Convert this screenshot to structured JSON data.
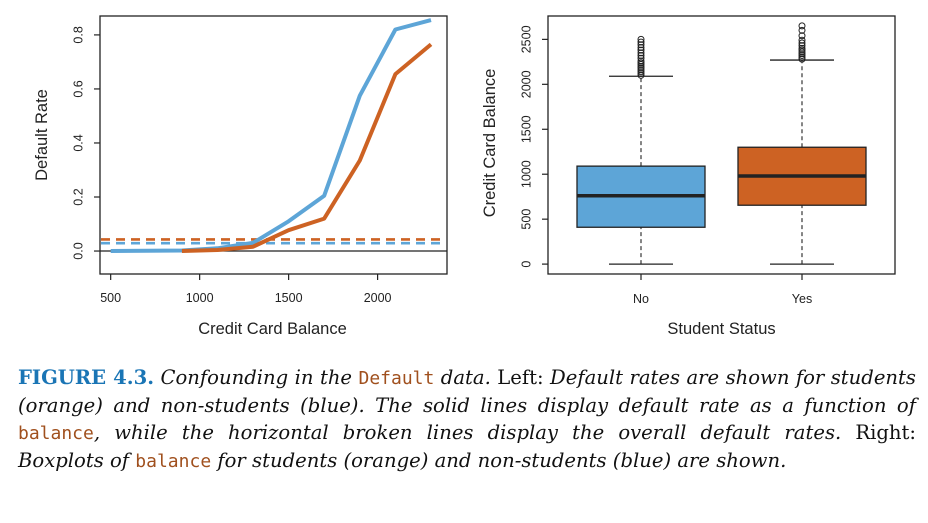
{
  "colors": {
    "blue": "#5da5d7",
    "orange": "#cd6223",
    "caption_label": "#1a75b5",
    "code": "#a0501e"
  },
  "chart_data": [
    {
      "type": "line",
      "xlabel": "Credit Card Balance",
      "ylabel": "Default Rate",
      "xlim": [
        440,
        2390
      ],
      "ylim": [
        -0.085,
        0.87
      ],
      "xticks": [
        500,
        1000,
        1500,
        2000
      ],
      "xtick_labels": [
        "500",
        "1000",
        "1500",
        "2000"
      ],
      "yticks": [
        0.0,
        0.2,
        0.4,
        0.6,
        0.8
      ],
      "ytick_labels": [
        "0.0",
        "0.2",
        "0.4",
        "0.6",
        "0.8"
      ],
      "grid": false,
      "series": [
        {
          "name": "non-students (blue)",
          "color": "#5da5d7",
          "style": "solid",
          "x": [
            500,
            700,
            900,
            1100,
            1300,
            1500,
            1700,
            1900,
            2100,
            2300
          ],
          "y": [
            0.0,
            0.001,
            0.002,
            0.01,
            0.03,
            0.11,
            0.205,
            0.575,
            0.82,
            0.855
          ]
        },
        {
          "name": "students (orange)",
          "color": "#cd6223",
          "style": "solid",
          "x": [
            900,
            1100,
            1300,
            1500,
            1700,
            1900,
            2100,
            2300
          ],
          "y": [
            0.0,
            0.004,
            0.016,
            0.077,
            0.12,
            0.335,
            0.655,
            0.765
          ]
        },
        {
          "name": "overall default rate students",
          "color": "#cd6223",
          "style": "dashed",
          "y_constant": 0.0431
        },
        {
          "name": "overall default rate non-students",
          "color": "#5da5d7",
          "style": "dashed",
          "y_constant": 0.0292
        }
      ],
      "reference_line_y": 0.0
    },
    {
      "type": "box",
      "xlabel": "Student Status",
      "ylabel": "Credit Card Balance",
      "ylim": [
        -110,
        2760
      ],
      "yticks": [
        0,
        500,
        1000,
        1500,
        2000,
        2500
      ],
      "ytick_labels": [
        "0",
        "500",
        "1000",
        "1500",
        "2000",
        "2500"
      ],
      "categories": [
        "No",
        "Yes"
      ],
      "boxes": [
        {
          "category": "No",
          "color": "#5da5d7",
          "whisker_low": 0,
          "q1": 410,
          "median": 760,
          "q3": 1090,
          "whisker_high": 2090,
          "outliers": [
            2100,
            2120,
            2140,
            2160,
            2180,
            2200,
            2220,
            2240,
            2260,
            2290,
            2320,
            2350,
            2380,
            2410,
            2440,
            2470,
            2500
          ]
        },
        {
          "category": "Yes",
          "color": "#cd6223",
          "whisker_low": 0,
          "q1": 655,
          "median": 980,
          "q3": 1300,
          "whisker_high": 2270,
          "outliers": [
            2280,
            2300,
            2320,
            2340,
            2360,
            2380,
            2400,
            2430,
            2460,
            2490,
            2540,
            2600,
            2650
          ]
        }
      ]
    }
  ],
  "caption": {
    "label": "FIGURE 4.3.",
    "p1": " Confounding in the ",
    "code1": "Default",
    "p2": " data.",
    "p3": " Left: ",
    "p4": "Default rates are shown for students (orange) and non-students (blue). The solid lines display default rate as a function of ",
    "code2": "balance",
    "p5": ", while the horizontal broken lines display the overall default rates.",
    "p6": " Right: ",
    "p7": "Boxplots of ",
    "code3": "balance",
    "p8": " for students (orange) and non-students (blue) are shown."
  }
}
